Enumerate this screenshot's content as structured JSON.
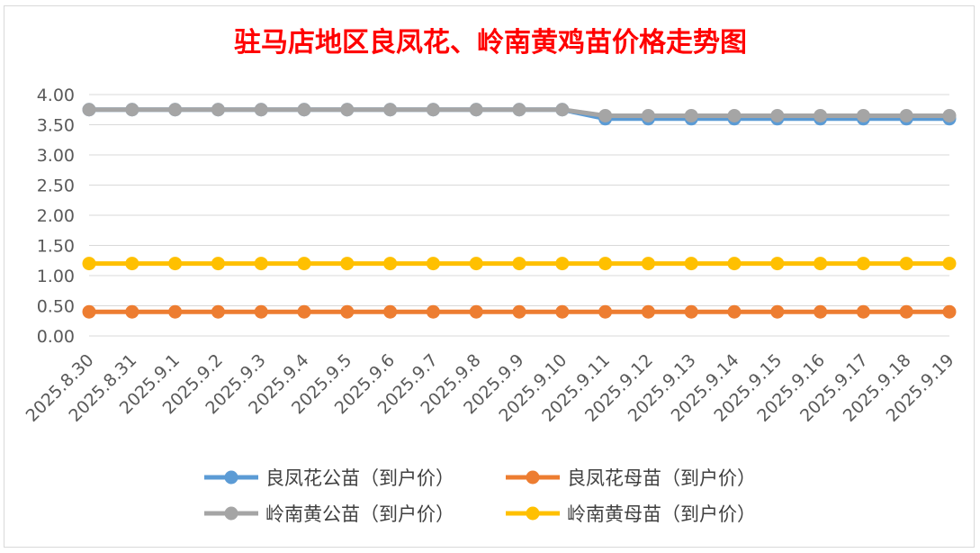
{
  "chart_data": {
    "type": "line",
    "title": "驻马店地区良凤花、岭南黄鸡苗价格走势图",
    "xlabel": "",
    "ylabel": "",
    "ylim": [
      0,
      4
    ],
    "yticks": [
      "0.00",
      "0.50",
      "1.00",
      "1.50",
      "2.00",
      "2.50",
      "3.00",
      "3.50",
      "4.00"
    ],
    "grid": true,
    "legend_position": "bottom",
    "categories": [
      "2025.8.30",
      "2025.8.31",
      "2025.9.1",
      "2025.9.2",
      "2025.9.3",
      "2025.9.4",
      "2025.9.5",
      "2025.9.6",
      "2025.9.7",
      "2025.9.8",
      "2025.9.9",
      "2025.9.10",
      "2025.9.11",
      "2025.9.12",
      "2025.9.13",
      "2025.9.14",
      "2025.9.15",
      "2025.9.16",
      "2025.9.17",
      "2025.9.18",
      "2025.9.19"
    ],
    "series": [
      {
        "name": "良凤花公苗（到户价）",
        "color": "#5b9bd5",
        "values": [
          3.75,
          3.75,
          3.75,
          3.75,
          3.75,
          3.75,
          3.75,
          3.75,
          3.75,
          3.75,
          3.75,
          3.75,
          3.6,
          3.6,
          3.6,
          3.6,
          3.6,
          3.6,
          3.6,
          3.6,
          3.6
        ]
      },
      {
        "name": "良凤花母苗（到户价）",
        "color": "#ed7d31",
        "values": [
          0.4,
          0.4,
          0.4,
          0.4,
          0.4,
          0.4,
          0.4,
          0.4,
          0.4,
          0.4,
          0.4,
          0.4,
          0.4,
          0.4,
          0.4,
          0.4,
          0.4,
          0.4,
          0.4,
          0.4,
          0.4
        ]
      },
      {
        "name": "岭南黄公苗（到户价）",
        "color": "#a5a5a5",
        "values": [
          3.75,
          3.75,
          3.75,
          3.75,
          3.75,
          3.75,
          3.75,
          3.75,
          3.75,
          3.75,
          3.75,
          3.75,
          3.65,
          3.65,
          3.65,
          3.65,
          3.65,
          3.65,
          3.65,
          3.65,
          3.65
        ]
      },
      {
        "name": "岭南黄母苗（到户价）",
        "color": "#ffc000",
        "values": [
          1.2,
          1.2,
          1.2,
          1.2,
          1.2,
          1.2,
          1.2,
          1.2,
          1.2,
          1.2,
          1.2,
          1.2,
          1.2,
          1.2,
          1.2,
          1.2,
          1.2,
          1.2,
          1.2,
          1.2,
          1.2
        ]
      }
    ],
    "draw_order": [
      0,
      2,
      1,
      3
    ]
  }
}
